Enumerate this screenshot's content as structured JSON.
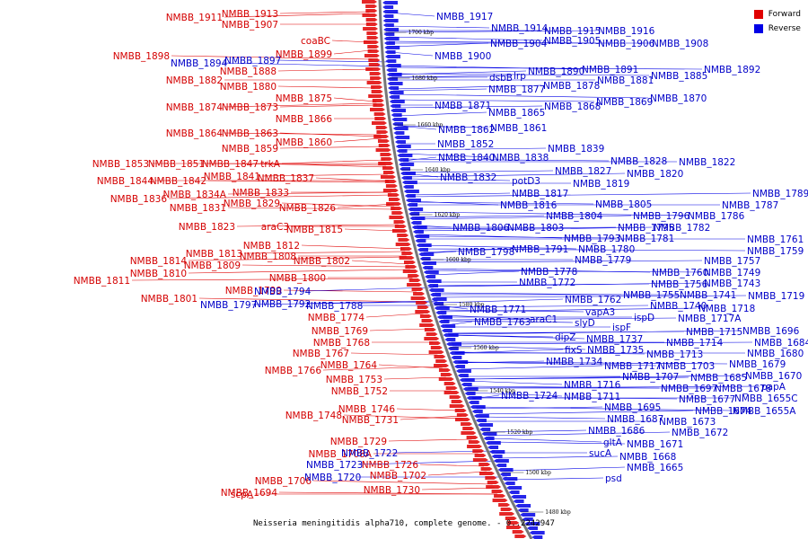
{
  "colors": {
    "forward": "#e00000",
    "reverse": "#0000e6",
    "backbone": "#777777"
  },
  "legend": [
    {
      "label": "Forward",
      "color": "#e00000"
    },
    {
      "label": "Reverse",
      "color": "#0000e6"
    }
  ],
  "caption": "Neisseria meningitidis alpha710, complete genome. - 0..2242947",
  "scale_labels": [
    "1700 kbp",
    "1680 kbp",
    "1660 kbp",
    "1640 kbp",
    "1620 kbp",
    "1600 kbp",
    "1580 kbp",
    "1560 kbp",
    "1540 kbp",
    "1520 kbp",
    "1500 kbp",
    "1480 kbp"
  ],
  "forward_labels": [
    "NMBB_1911",
    "NMBB_1913",
    "NMBB_1907",
    "coaBC",
    "NMBB_1898",
    "NMBB_1899",
    "NMBB_1888",
    "NMBB_1882",
    "NMBB_1880",
    "NMBB_1875",
    "NMBB_1874",
    "NMBB_1873",
    "NMBB_1866",
    "NMBB_1864",
    "NMBB_1863",
    "NMBB_1860",
    "NMBB_1859",
    "NMBB_1853",
    "NMBB_1851",
    "NMBB_1847",
    "trkA",
    "NMBB_1841",
    "NMBB_1844",
    "NMBB_1842",
    "NMBB_1837",
    "NMBB_1836",
    "NMBB_1834A",
    "NMBB_1833",
    "NMBB_1831",
    "NMBB_1829",
    "NMBB_1826",
    "NMBB_1823",
    "araC3",
    "NMBB_1815",
    "NMBB_1812",
    "NMBB_1814",
    "NMBB_1813",
    "NMBB_1808",
    "NMBB_1809",
    "NMBB_1802",
    "NMBB_1810",
    "NMBB_1811",
    "NMBB_1800",
    "NMBB_1799",
    "NMBB_1801",
    "NMBB_1774",
    "NMBB_1769",
    "NMBB_1768",
    "NMBB_1767",
    "NMBB_1764",
    "NMBB_1766",
    "NMBB_1753",
    "NMBB_1752",
    "NMBB_1746",
    "NMBB_1748",
    "NMBB_1731",
    "NMBB_1729",
    "NMBB_1708A",
    "NMBB_1726",
    "NMBB_1706",
    "NMBB_1702",
    "NMBB_1730",
    "scpA",
    "NMBB_1694"
  ],
  "reverse_labels": [
    "NMBB_1917",
    "NMBB_1914",
    "NMBB_1915",
    "NMBB_1916",
    "NMBB_1904",
    "NMBB_1905",
    "NMBB_1906",
    "NMBB_1908",
    "NMBB_1897",
    "NMBB_1894",
    "NMBB_1900",
    "NMBB_1892",
    "dsbB",
    "lrp",
    "NMBB_1890",
    "NMBB_1891",
    "NMBB_1885",
    "NMBB_1881",
    "NMBB_1877",
    "NMBB_1878",
    "NMBB_1870",
    "NMBB_1869",
    "NMBB_1871",
    "NMBB_1868",
    "NMBB_1865",
    "NMBB_1862",
    "NMBB_1861",
    "NMBB_1852",
    "NMBB_1839",
    "NMBB_1840",
    "NMBB_1838",
    "NMBB_1828",
    "NMBB_1822",
    "NMBB_1827",
    "NMBB_1820",
    "NMBB_1832",
    "potD3",
    "NMBB_1819",
    "NMBB_1817",
    "NMBB_1789",
    "NMBB_1816",
    "NMBB_1805",
    "NMBB_1787",
    "NMBB_1804",
    "NMBB_1796",
    "NMBB_1786",
    "NMBB_1806",
    "NMBB_1803",
    "NMBB_1795",
    "NMBB_1782",
    "NMBB_1793",
    "NMBB_1781",
    "NMBB_1761",
    "NMBB_1798",
    "NMBB_1791",
    "NMBB_1780",
    "NMBB_1759",
    "NMBB_1779",
    "NMBB_1757",
    "NMBB_1778",
    "NMBB_1760",
    "NMBB_1749",
    "NMBB_1772",
    "NMBB_1756",
    "NMBB_1743",
    "NMBB_1794",
    "NMBB_1755",
    "NMBB_1741",
    "NMBB_1719",
    "NMBB_1762",
    "NMBB_1797",
    "NMBB_1792",
    "NMBB_1788",
    "NMBB_1740",
    "NMBB_1718",
    "NMBB_1771",
    "vapA3",
    "ispD",
    "NMBB_1717A",
    "NMBB_1763",
    "araC1",
    "slyD",
    "ispF",
    "NMBB_1715",
    "NMBB_1696",
    "NMBB_1737",
    "dipZ",
    "NMBB_1714",
    "NMBB_1684",
    "fixS",
    "NMBB_1735",
    "NMBB_1713",
    "NMBB_1680",
    "NMBB_1734",
    "NMBB_1717",
    "NMBB_1703",
    "NMBB_1679",
    "NMBB_1707",
    "NMBB_1685",
    "NMBB_1670",
    "NMBB_1716",
    "NMBB_1697",
    "NMBB_1678",
    "papA",
    "NMBB_1724",
    "NMBB_1711",
    "NMBB_1677",
    "NMBB_1655C",
    "NMBB_1695",
    "NMBB_1674",
    "NMBB_1655A",
    "NMBB_1687",
    "NMBB_1673",
    "NMBB_1686",
    "NMBB_1672",
    "gltA",
    "NMBB_1671",
    "sucA",
    "NMBB_1668",
    "NMBB_1665",
    "NMBB_1723",
    "NMBB_1722",
    "NMBB_1720",
    "psd"
  ]
}
